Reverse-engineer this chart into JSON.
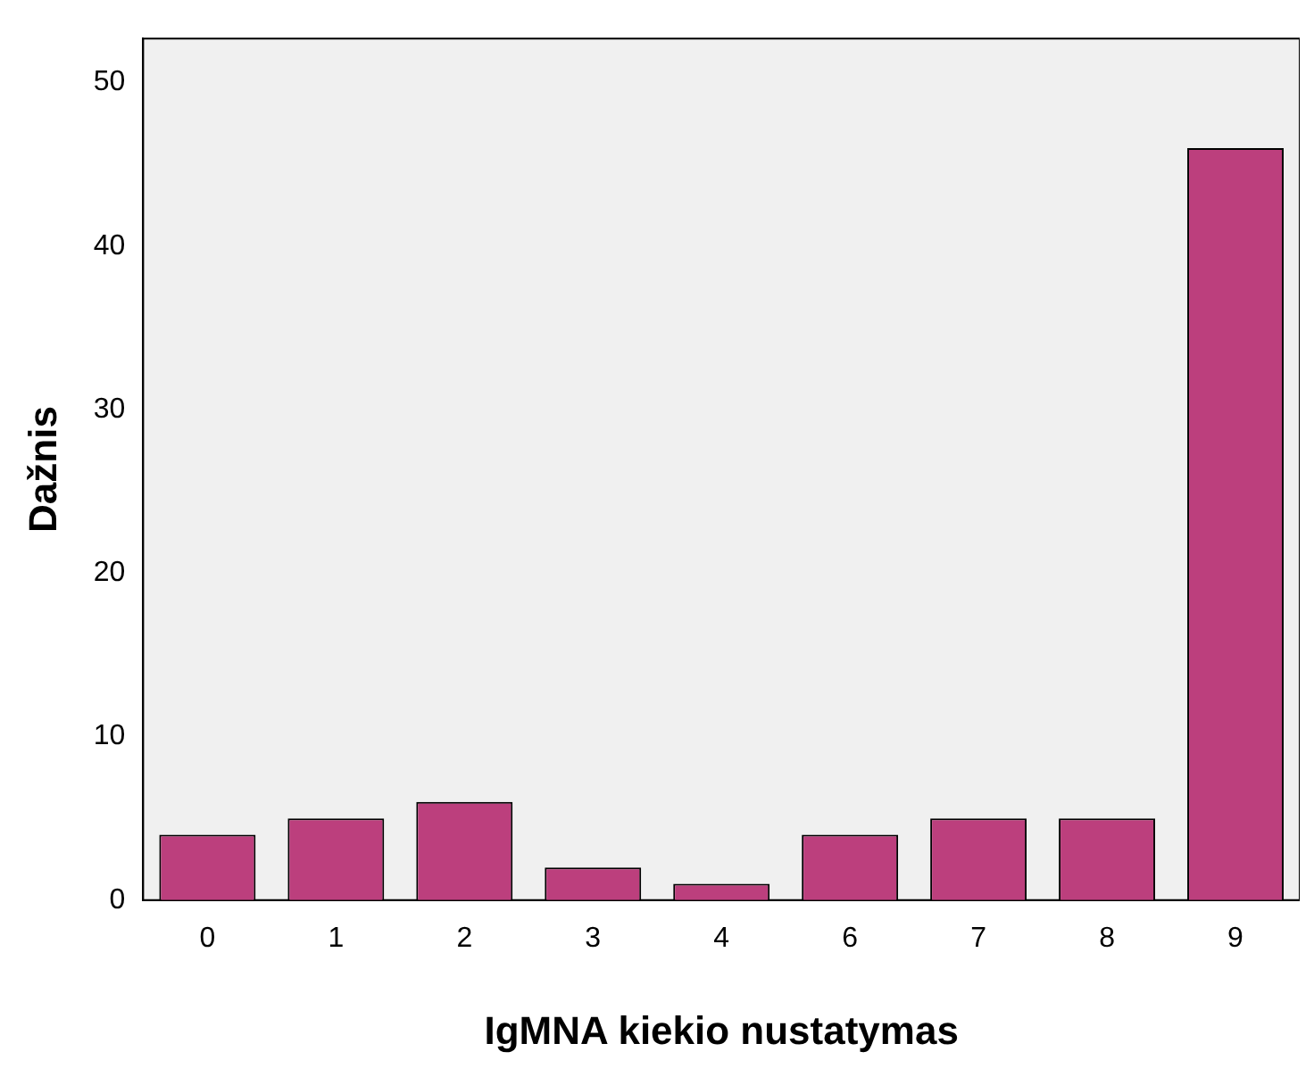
{
  "chart_data": {
    "type": "bar",
    "xlabel": "IgMNA kiekio nustatymas",
    "ylabel": "Dažnis",
    "categories": [
      "0",
      "1",
      "2",
      "3",
      "4",
      "6",
      "7",
      "8",
      "9"
    ],
    "values": [
      4,
      5,
      6,
      2,
      1,
      4,
      5,
      5,
      46
    ],
    "color": "#bc3f7d",
    "ylim": [
      0,
      52.7
    ],
    "yticks": [
      0,
      10,
      20,
      30,
      40,
      50
    ],
    "grid": false,
    "legend": false
  }
}
